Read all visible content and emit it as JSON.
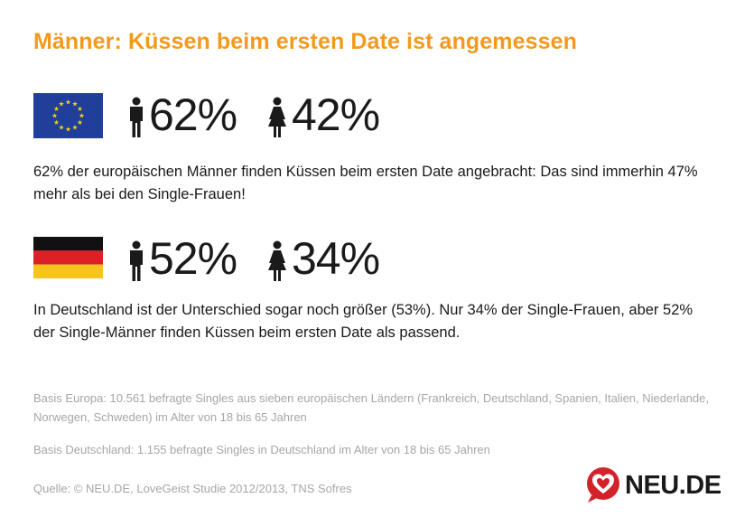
{
  "title": "Männer: Küssen beim ersten Date ist angemessen",
  "colors": {
    "accent": "#f39a1e",
    "logo_red": "#d2232a",
    "note_gray": "#a6a6a6"
  },
  "europe": {
    "flag": "eu-flag",
    "men_pct": "62%",
    "women_pct": "42%",
    "description": "62% der europäischen Männer finden Küssen beim ersten Date angebracht: Das sind immerhin 47% mehr als bei den Single-Frauen!"
  },
  "germany": {
    "flag": "german-flag",
    "men_pct": "52%",
    "women_pct": "34%",
    "description": "In Deutschland ist der Unterschied sogar noch größer (53%). Nur 34% der Single-Frauen, aber 52% der Single-Männer finden Küssen beim ersten Date als passend."
  },
  "notes": {
    "basis_europe": "Basis Europa: 10.561 befragte Singles aus sieben europäischen Ländern (Frankreich, Deutschland, Spanien, Italien, Niederlande, Norwegen, Schweden) im Alter von 18 bis 65 Jahren",
    "basis_germany": "Basis Deutschland: 1.155 befragte Singles in Deutschland im Alter von 18 bis 65 Jahren",
    "source": "Quelle: © NEU.DE, LoveGeist Studie 2012/2013, TNS Sofres"
  },
  "logo": {
    "text": "NEU.DE",
    "icon": "heart-logo-icon"
  }
}
